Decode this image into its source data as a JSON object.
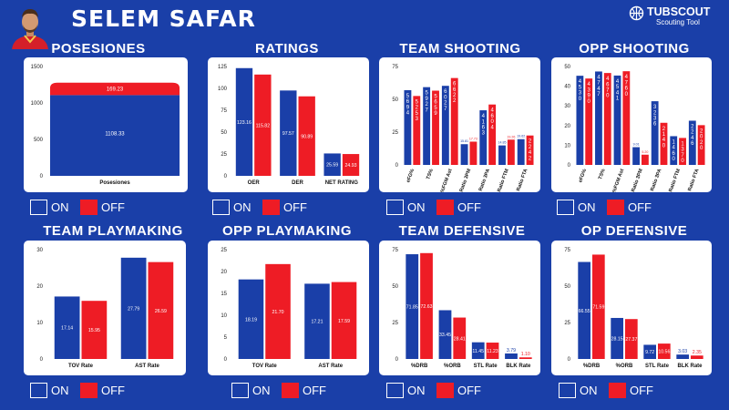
{
  "header": {
    "player_name": "SELEM SAFAR",
    "brand_name": "TUBSCOUT",
    "brand_sub": "Scouting Tool"
  },
  "legend": {
    "on": "ON",
    "off": "OFF"
  },
  "colors": {
    "on": "#1a3fa8",
    "off": "#ee1c25",
    "background": "#1a3fa8",
    "card": "#ffffff"
  },
  "panels": [
    {
      "title": "POSESIONES"
    },
    {
      "title": "RATINGS"
    },
    {
      "title": "TEAM SHOOTING"
    },
    {
      "title": "OPP SHOOTING"
    },
    {
      "title": "TEAM PLAYMAKING"
    },
    {
      "title": "OPP PLAYMAKING"
    },
    {
      "title": "TEAM DEFENSIVE"
    },
    {
      "title": "OP DEFENSIVE"
    }
  ],
  "chart_data": [
    {
      "type": "bar",
      "stacked": true,
      "title": "POSESIONES",
      "categories": [
        "Posesiones"
      ],
      "ylim": [
        0,
        1500
      ],
      "yticks": [
        0,
        500,
        1000,
        1500
      ],
      "series": [
        {
          "name": "ON",
          "values": [
            1108.33
          ],
          "labels": [
            "1108.33"
          ]
        },
        {
          "name": "OFF",
          "values": [
            169.23
          ],
          "labels": [
            "169.23"
          ]
        }
      ]
    },
    {
      "type": "bar",
      "title": "RATINGS",
      "categories": [
        "OER",
        "DER",
        "NET RATING"
      ],
      "ylim": [
        0,
        125
      ],
      "yticks": [
        0,
        25,
        50,
        75,
        100,
        125
      ],
      "series": [
        {
          "name": "ON",
          "values": [
            123.16,
            97.57,
            25.59
          ],
          "labels": [
            "123.16",
            "97.57",
            "25.59"
          ]
        },
        {
          "name": "OFF",
          "values": [
            115.82,
            90.89,
            24.93
          ],
          "labels": [
            "115.82",
            "90.89",
            "24.93"
          ]
        }
      ]
    },
    {
      "type": "bar",
      "title": "TEAM SHOOTING",
      "categories": [
        "eFG%",
        "TS%",
        "%FGM Ast",
        "Ratio 3PM",
        "Ratio 3PA",
        "Ratio FTM",
        "Ratio FTA"
      ],
      "ylim": [
        0,
        75
      ],
      "yticks": [
        0,
        25,
        50,
        75
      ],
      "series": [
        {
          "name": "ON",
          "values": [
            56.94,
            59.27,
            60.27,
            15.81,
            41.63,
            14.85,
            19.62
          ],
          "labels": [
            "56.94",
            "59.27",
            "60.27",
            "15.81",
            "41.63",
            "14.85",
            "19.62"
          ]
        },
        {
          "name": "OFF",
          "values": [
            52.53,
            56.59,
            66.22,
            17.73,
            46.04,
            19.26,
            22.42
          ],
          "labels": [
            "52.53",
            "56.59",
            "66.22",
            "17.73",
            "46.04",
            "19.26",
            "22.42"
          ]
        }
      ]
    },
    {
      "type": "bar",
      "title": "OPP SHOOTING",
      "categories": [
        "eFG%",
        "TS%",
        "%FGM Ast",
        "Ratio 3PM",
        "Ratio 3PA",
        "Ratio FTM",
        "Ratio FTA"
      ],
      "ylim": [
        0,
        50
      ],
      "yticks": [
        0,
        10,
        20,
        30,
        40,
        50
      ],
      "series": [
        {
          "name": "ON",
          "values": [
            45.3,
            47.47,
            45.41,
            9.01,
            32.36,
            14.6,
            22.46
          ],
          "labels": [
            "45.30",
            "47.47",
            "45.41",
            "9.01",
            "32.36",
            "14.60",
            "22.46"
          ]
        },
        {
          "name": "OFF",
          "values": [
            43.9,
            46.7,
            47.6,
            5.2,
            21.4,
            13.7,
            20.2
          ],
          "labels": [
            "43.90",
            "46.70",
            "47.60",
            "5.20",
            "21.40",
            "13.70",
            "20.20"
          ]
        }
      ]
    },
    {
      "type": "bar",
      "title": "TEAM PLAYMAKING",
      "categories": [
        "TOV Rate",
        "AST Rate"
      ],
      "ylim": [
        0,
        30
      ],
      "yticks": [
        0,
        10,
        20,
        30
      ],
      "series": [
        {
          "name": "ON",
          "values": [
            17.14,
            27.79
          ],
          "labels": [
            "17.14",
            "27.79"
          ]
        },
        {
          "name": "OFF",
          "values": [
            15.95,
            26.59
          ],
          "labels": [
            "15.95",
            "26.59"
          ]
        }
      ]
    },
    {
      "type": "bar",
      "title": "OPP PLAYMAKING",
      "categories": [
        "TOV Rate",
        "AST Rate"
      ],
      "ylim": [
        0,
        25
      ],
      "yticks": [
        0,
        5,
        10,
        15,
        20,
        25
      ],
      "series": [
        {
          "name": "ON",
          "values": [
            18.19,
            17.21
          ],
          "labels": [
            "18.19",
            "17.21"
          ]
        },
        {
          "name": "OFF",
          "values": [
            21.7,
            17.59
          ],
          "labels": [
            "21.70",
            "17.59"
          ]
        }
      ]
    },
    {
      "type": "bar",
      "title": "TEAM DEFENSIVE",
      "categories": [
        "%DRB",
        "%ORB",
        "STL Rate",
        "BLK Rate"
      ],
      "ylim": [
        0,
        75
      ],
      "yticks": [
        0,
        25,
        50,
        75
      ],
      "series": [
        {
          "name": "ON",
          "values": [
            71.85,
            33.45,
            11.45,
            3.79
          ],
          "labels": [
            "71.85",
            "33.45",
            "11.45",
            "3.79"
          ]
        },
        {
          "name": "OFF",
          "values": [
            72.63,
            28.41,
            11.23,
            1.1
          ],
          "labels": [
            "72.63",
            "28.41",
            "11.23",
            "1.10"
          ]
        }
      ]
    },
    {
      "type": "bar",
      "title": "OP DEFENSIVE",
      "categories": [
        "%DRB",
        "%ORB",
        "STL Rate",
        "BLK Rate"
      ],
      "ylim": [
        0,
        75
      ],
      "yticks": [
        0,
        25,
        50,
        75
      ],
      "series": [
        {
          "name": "ON",
          "values": [
            66.55,
            28.15,
            9.72,
            3.03
          ],
          "labels": [
            "66.55",
            "28.15",
            "9.72",
            "3.03"
          ]
        },
        {
          "name": "OFF",
          "values": [
            71.59,
            27.37,
            10.56,
            2.35
          ],
          "labels": [
            "71.59",
            "27.37",
            "10.56",
            "2.35"
          ]
        }
      ]
    }
  ]
}
